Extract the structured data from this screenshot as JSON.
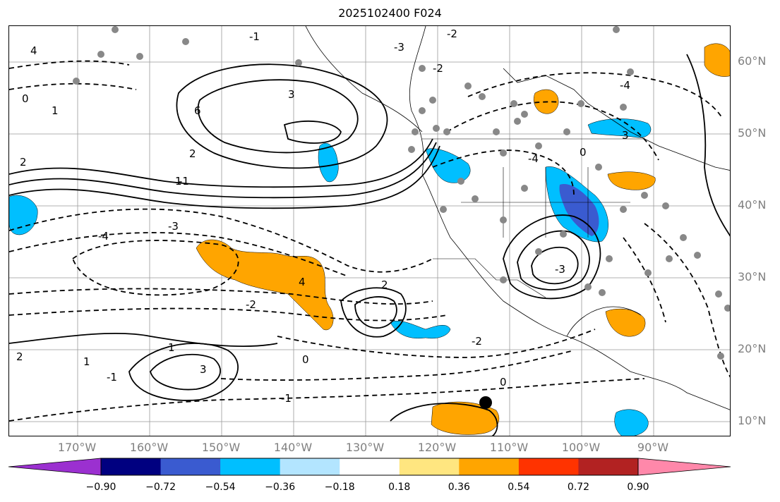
{
  "title": "2025102400 F024",
  "lat_labels": [
    "60°N",
    "50°N",
    "40°N",
    "30°N",
    "20°N",
    "10°N"
  ],
  "lon_labels": [
    "170°W",
    "160°W",
    "150°W",
    "140°W",
    "130°W",
    "120°W",
    "110°W",
    "100°W",
    "90°W"
  ],
  "contour_labels": [
    "4",
    "3",
    "6",
    "2",
    "1",
    "0",
    "-4",
    "-3",
    "-2",
    "-1",
    "0",
    "1",
    "2",
    "3",
    "4",
    "2",
    "1",
    "-1",
    "-2",
    "-3",
    "-4",
    "-3",
    "-2",
    "-1",
    "0",
    "0",
    "-1",
    "-2",
    "3",
    "2",
    "1",
    "-4"
  ],
  "colorbar": {
    "tick_labels": [
      "−0.90",
      "−0.72",
      "−0.54",
      "−0.36",
      "−0.18",
      "0.18",
      "0.36",
      "0.54",
      "0.72",
      "0.90"
    ],
    "colors": [
      "#9b30d0",
      "#000080",
      "#3a5bd0",
      "#00bfff",
      "#b3e5ff",
      "#ffffff",
      "#ffe680",
      "#ffa500",
      "#ff3300",
      "#b22222",
      "#ff88aa"
    ]
  }
}
